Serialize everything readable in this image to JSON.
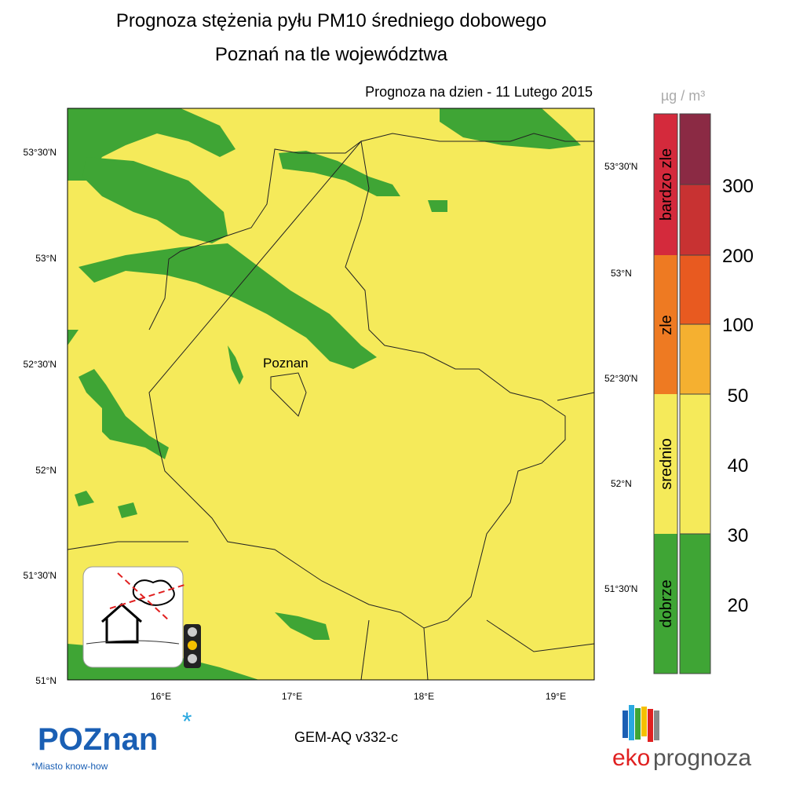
{
  "header": {
    "title": "Prognoza stężenia pyłu PM10 średniego dobowego",
    "subtitle": "Poznań na tle województwa",
    "date": "Prognoza na dzien -  11 Lutego 2015"
  },
  "map": {
    "city_label": "Poznan",
    "lat_labels_left": [
      "53°30'N",
      "53°N",
      "52°30'N",
      "52°N",
      "51°30'N",
      "51°N"
    ],
    "lat_labels_right": [
      "53°30'N",
      "53°N",
      "52°30'N",
      "52°N",
      "51°30'N"
    ],
    "lon_labels": [
      "16°E",
      "17°E",
      "18°E",
      "19°E"
    ]
  },
  "legend": {
    "unit": "µg / m³",
    "categories": [
      "bardzo zle",
      "zle",
      "srednio",
      "dobrze"
    ],
    "levels": [
      "300",
      "200",
      "100",
      "50",
      "40",
      "30",
      "20"
    ]
  },
  "footer": {
    "logo": "POZnan",
    "tagline": "*Miasto know-how",
    "model": "GEM-AQ v332-c",
    "brand_left": "eko",
    "brand_right": "prognoza"
  }
}
